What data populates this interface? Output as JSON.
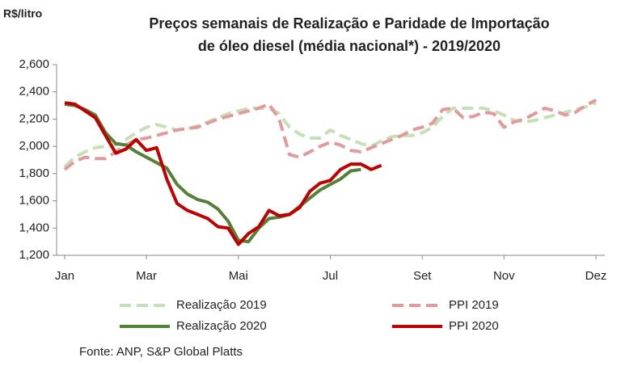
{
  "chart_data": {
    "type": "line",
    "title": [
      "Preços semanais de Realização e Paridade de Importação",
      "de óleo diesel (média nacional*) - 2019/2020"
    ],
    "y_label": "R$/litro",
    "source": "Fonte: ANP, S&P Global Platts",
    "categories": [
      "Jan",
      null,
      null,
      null,
      null,
      null,
      null,
      null,
      "Mar",
      null,
      null,
      null,
      null,
      null,
      null,
      null,
      null,
      "Mai",
      null,
      null,
      null,
      null,
      null,
      null,
      null,
      null,
      "Jul",
      null,
      null,
      null,
      null,
      null,
      null,
      null,
      null,
      "Set",
      null,
      null,
      null,
      null,
      null,
      null,
      null,
      "Nov",
      null,
      null,
      null,
      null,
      null,
      null,
      null,
      null,
      "Dez"
    ],
    "ylim": [
      1200,
      2600
    ],
    "yticks": [
      {
        "value": 1200,
        "label": "1,200"
      },
      {
        "value": 1400,
        "label": "1,400"
      },
      {
        "value": 1600,
        "label": "1,600"
      },
      {
        "value": 1800,
        "label": "1,800"
      },
      {
        "value": 2000,
        "label": "2,000"
      },
      {
        "value": 2200,
        "label": "2,200"
      },
      {
        "value": 2400,
        "label": "2,400"
      },
      {
        "value": 2600,
        "label": "2,600"
      }
    ],
    "grid": false,
    "legend": "bottom",
    "series": [
      {
        "name": "Realização 2019",
        "color": "#c5e0b4",
        "style": "dashed",
        "values": [
          1850,
          1920,
          1960,
          1990,
          2000,
          2010,
          2050,
          2100,
          2140,
          2160,
          2140,
          2120,
          2130,
          2150,
          2180,
          2210,
          2240,
          2260,
          2280,
          2280,
          2280,
          2240,
          2140,
          2090,
          2060,
          2060,
          2120,
          2080,
          2050,
          2020,
          2000,
          2040,
          2070,
          2080,
          2080,
          2100,
          2140,
          2220,
          2280,
          2280,
          2280,
          2280,
          2260,
          2230,
          2190,
          2180,
          2190,
          2210,
          2230,
          2250,
          2270,
          2290,
          2320
        ]
      },
      {
        "name": "PPI 2019",
        "color": "#e39a9a",
        "style": "dashed",
        "values": [
          1830,
          1890,
          1920,
          1910,
          1910,
          1960,
          2010,
          2050,
          2060,
          2080,
          2100,
          2120,
          2130,
          2140,
          2170,
          2200,
          2220,
          2240,
          2260,
          2280,
          2310,
          2200,
          1940,
          1920,
          1960,
          2000,
          2030,
          2010,
          1970,
          1960,
          1990,
          2020,
          2050,
          2080,
          2120,
          2140,
          2170,
          2270,
          2280,
          2210,
          2220,
          2250,
          2240,
          2140,
          2180,
          2200,
          2240,
          2280,
          2260,
          2230,
          2250,
          2300,
          2340
        ]
      },
      {
        "name": "Realização 2020",
        "color": "#538135",
        "style": "solid",
        "values": [
          2310,
          2300,
          2270,
          2230,
          2100,
          2020,
          2010,
          1960,
          1920,
          1880,
          1840,
          1720,
          1650,
          1610,
          1590,
          1540,
          1450,
          1310,
          1300,
          1400,
          1470,
          1480,
          1500,
          1560,
          1620,
          1680,
          1720,
          1760,
          1820,
          1830,
          null,
          null,
          null,
          null,
          null,
          null,
          null,
          null,
          null,
          null,
          null,
          null,
          null,
          null,
          null,
          null,
          null,
          null,
          null,
          null,
          null,
          null,
          null
        ]
      },
      {
        "name": "PPI 2020",
        "color": "#c00000",
        "style": "solid",
        "values": [
          2320,
          2310,
          2260,
          2210,
          2080,
          1950,
          1980,
          2050,
          1970,
          1990,
          1760,
          1580,
          1530,
          1500,
          1470,
          1410,
          1400,
          1280,
          1360,
          1410,
          1530,
          1490,
          1500,
          1550,
          1670,
          1730,
          1750,
          1830,
          1870,
          1870,
          1830,
          1860,
          null,
          null,
          null,
          null,
          null,
          null,
          null,
          null,
          null,
          null,
          null,
          null,
          null,
          null,
          null,
          null,
          null,
          null,
          null,
          null,
          null
        ]
      }
    ]
  }
}
